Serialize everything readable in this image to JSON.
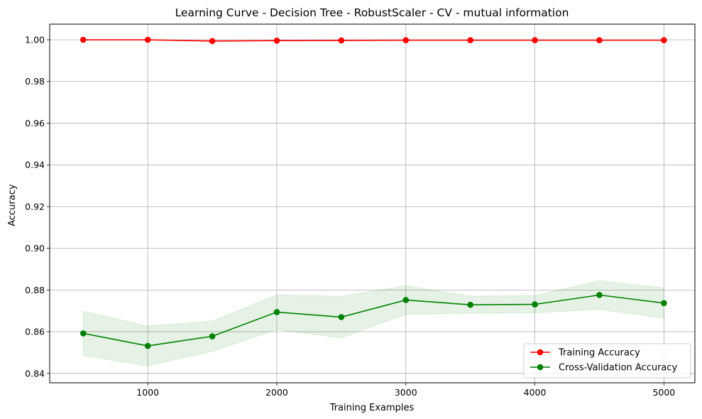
{
  "chart_data": {
    "type": "line",
    "title": "Learning Curve - Decision Tree - RobustScaler - CV - mutual information",
    "xlabel": "Training Examples",
    "ylabel": "Accuracy",
    "xlim": [
      240,
      5240
    ],
    "ylim": [
      0.8355,
      1.0075
    ],
    "xticks": [
      1000,
      2000,
      3000,
      4000,
      5000
    ],
    "yticks": [
      0.84,
      0.86,
      0.88,
      0.9,
      0.92,
      0.94,
      0.96,
      0.98,
      1.0
    ],
    "xtick_labels": [
      "1000",
      "2000",
      "3000",
      "4000",
      "5000"
    ],
    "ytick_labels": [
      "0.84",
      "0.86",
      "0.88",
      "0.90",
      "0.92",
      "0.94",
      "0.96",
      "0.98",
      "1.00"
    ],
    "grid": true,
    "legend_position": "lower right",
    "x": [
      500,
      1000,
      1500,
      2000,
      2500,
      3000,
      3500,
      4000,
      4500,
      5000
    ],
    "series": [
      {
        "name": "Training Accuracy",
        "color": "#ff0000",
        "band_color": "#ff0000",
        "values": [
          1.0,
          1.0,
          0.9994,
          0.9996,
          0.9997,
          0.9998,
          0.9998,
          0.9998,
          0.9998,
          0.9998
        ],
        "lower": [
          1.0,
          1.0,
          0.9991,
          0.9994,
          0.9995,
          0.9997,
          0.9997,
          0.9997,
          0.9997,
          0.9997
        ],
        "upper": [
          1.0,
          1.0,
          0.9997,
          0.9998,
          0.9999,
          0.9999,
          0.9999,
          0.9999,
          0.9999,
          0.9999
        ]
      },
      {
        "name": "Cross-Validation Accuracy",
        "color": "#008000",
        "band_color": "#008000",
        "values": [
          0.8592,
          0.8532,
          0.8578,
          0.8694,
          0.867,
          0.8752,
          0.8729,
          0.8731,
          0.8776,
          0.8737
        ],
        "lower": [
          0.8485,
          0.8436,
          0.8506,
          0.861,
          0.857,
          0.8683,
          0.8688,
          0.869,
          0.8707,
          0.8665
        ],
        "upper": [
          0.8698,
          0.8627,
          0.8651,
          0.8777,
          0.877,
          0.882,
          0.8771,
          0.8773,
          0.8845,
          0.881
        ]
      }
    ]
  }
}
